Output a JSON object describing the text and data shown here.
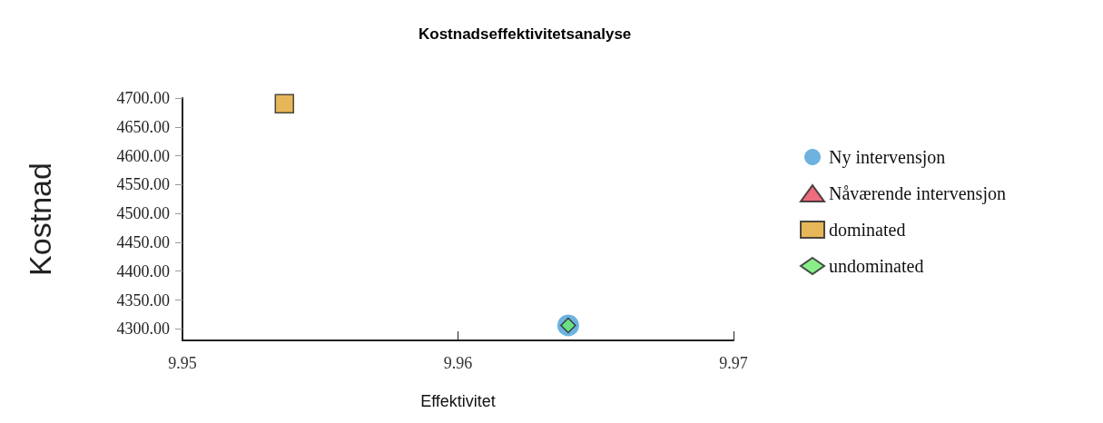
{
  "chart_data": {
    "type": "scatter",
    "title": "Kostnadseffektivitetsanalyse",
    "xlabel": "Effektivitet",
    "ylabel": "Kostnad",
    "xlim": [
      9.95,
      9.97
    ],
    "xticks": [
      9.95,
      9.96,
      9.97
    ],
    "ylim": [
      4280,
      4700
    ],
    "yticks": [
      {
        "value": 4300,
        "label": "4300.00"
      },
      {
        "value": 4350,
        "label": "4350.00"
      },
      {
        "value": 4400,
        "label": "4400.00"
      },
      {
        "value": 4450,
        "label": "4450.00"
      },
      {
        "value": 4500,
        "label": "4500.00"
      },
      {
        "value": 4550,
        "label": "4550.00"
      },
      {
        "value": 4600,
        "label": "4600.00"
      },
      {
        "value": 4650,
        "label": "4650.00"
      },
      {
        "value": 4700,
        "label": "4700.00"
      }
    ],
    "grid": false,
    "legend": "right",
    "x": [
      9.9537,
      9.964
    ],
    "series": [
      {
        "name": "Ny intervensjon",
        "color": "#4a9fd8",
        "marker": "circle",
        "values": [
          null,
          4306
        ]
      },
      {
        "name": "Nåværende intervensjon",
        "color": "#e8495d",
        "marker": "triangle",
        "values": [
          null,
          null
        ]
      },
      {
        "name": "dominated",
        "color": "#e0a530",
        "marker": "square",
        "values": [
          4690,
          null
        ]
      },
      {
        "name": "undominated",
        "color": "#6ce86c",
        "marker": "diamond",
        "values": [
          null,
          4306
        ]
      }
    ]
  }
}
